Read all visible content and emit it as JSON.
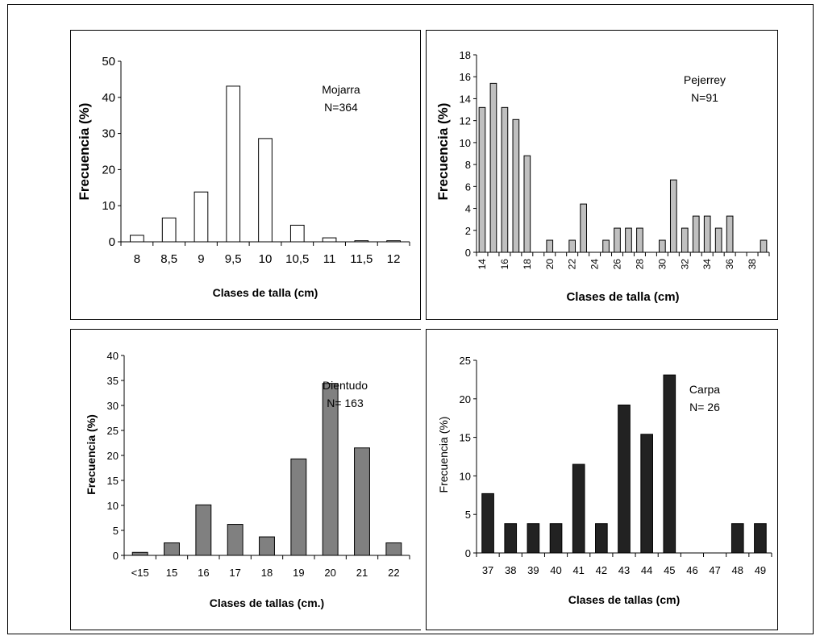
{
  "chart_data": [
    {
      "type": "bar",
      "title": "",
      "annotation": [
        "Mojarra",
        "N=364"
      ],
      "xlabel": "Clases de talla (cm)",
      "ylabel": "Frecuencia (%)",
      "ylim": [
        0,
        50
      ],
      "yticks": [
        0,
        10,
        20,
        30,
        40,
        50
      ],
      "categories": [
        "8",
        "8,5",
        "9",
        "9,5",
        "10",
        "10,5",
        "11",
        "11,5",
        "12"
      ],
      "values": [
        1.8,
        6.6,
        13.8,
        43.1,
        28.6,
        4.6,
        1.1,
        0.3,
        0.3
      ],
      "bar_color": "#ffffff",
      "grid": false
    },
    {
      "type": "bar",
      "title": "",
      "annotation": [
        "Pejerrey",
        "N=91"
      ],
      "xlabel": "Clases de talla (cm)",
      "ylabel": "Frecuencia (%)",
      "ylim": [
        0,
        18
      ],
      "yticks": [
        0,
        2,
        4,
        6,
        8,
        10,
        12,
        14,
        16,
        18
      ],
      "categories": [
        "14",
        "15",
        "16",
        "17",
        "18",
        "19",
        "20",
        "21",
        "22",
        "23",
        "24",
        "25",
        "26",
        "27",
        "28",
        "29",
        "30",
        "31",
        "32",
        "33",
        "34",
        "35",
        "36",
        "37",
        "38",
        "39"
      ],
      "tick_labels": [
        "14",
        "16",
        "18",
        "20",
        "22",
        "24",
        "26",
        "28",
        "30",
        "32",
        "34",
        "36",
        "38"
      ],
      "values": [
        13.2,
        15.4,
        13.2,
        12.1,
        8.8,
        0,
        1.1,
        0,
        1.1,
        4.4,
        0,
        1.1,
        2.2,
        2.2,
        2.2,
        0,
        1.1,
        6.6,
        2.2,
        3.3,
        3.3,
        2.2,
        3.3,
        0,
        0,
        1.1
      ],
      "bar_color": "#c0c0c0",
      "grid": false
    },
    {
      "type": "bar",
      "title": "",
      "annotation": [
        "Dientudo",
        "N= 163"
      ],
      "xlabel": "Clases de tallas (cm.)",
      "ylabel": "Frecuencia (%)",
      "ylim": [
        0,
        40
      ],
      "yticks": [
        0,
        5,
        10,
        15,
        20,
        25,
        30,
        35,
        40
      ],
      "categories": [
        "<15",
        "15",
        "16",
        "17",
        "18",
        "19",
        "20",
        "21",
        "22"
      ],
      "values": [
        0.6,
        2.5,
        10.1,
        6.2,
        3.7,
        19.3,
        34.4,
        21.5,
        2.5
      ],
      "bar_color": "#808080",
      "grid": false
    },
    {
      "type": "bar",
      "title": "",
      "annotation": [
        "Carpa",
        "N= 26"
      ],
      "xlabel": "Clases de tallas (cm)",
      "ylabel": "Frecuencia (%)",
      "ylim": [
        0,
        25
      ],
      "yticks": [
        0,
        5,
        10,
        15,
        20,
        25
      ],
      "categories": [
        "37",
        "38",
        "39",
        "40",
        "41",
        "42",
        "43",
        "44",
        "45",
        "46",
        "47",
        "48",
        "49"
      ],
      "values": [
        7.7,
        3.8,
        3.8,
        3.8,
        11.5,
        3.8,
        19.2,
        15.4,
        23.1,
        0,
        0,
        3.8,
        3.8
      ],
      "bar_color": "#222222",
      "grid": false
    }
  ]
}
